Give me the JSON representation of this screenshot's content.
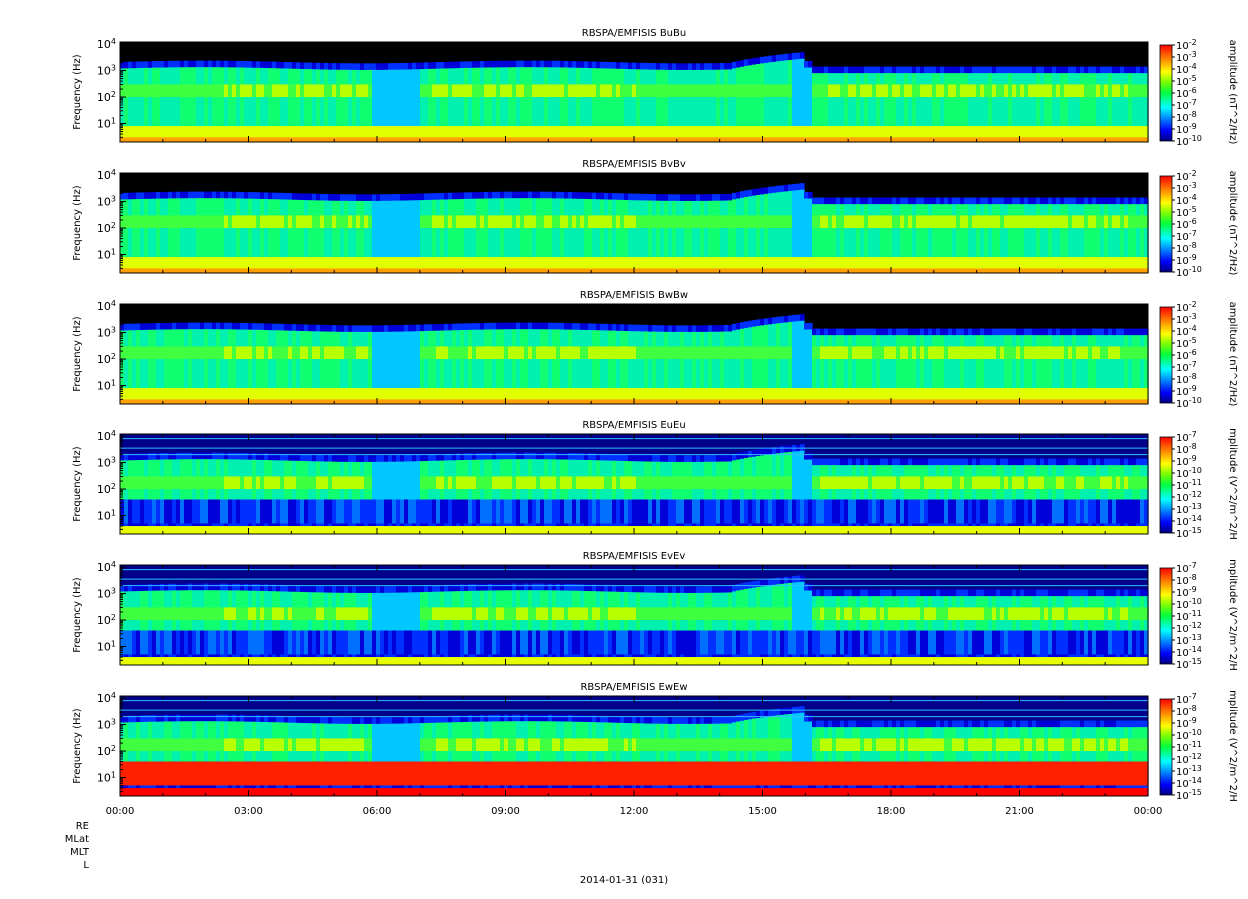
{
  "chart_data": [
    {
      "type": "heatmap",
      "title": "RBSPA/EMFISIS  BuBu",
      "ylabel": "Frequency (Hz)",
      "y_scale": "log",
      "ylim": [
        2,
        12000
      ],
      "y_ticks": [
        "10^1",
        "10^2",
        "10^3",
        "10^4"
      ],
      "xlim": [
        "00:00",
        "24:00"
      ],
      "colorbar": {
        "label": "amplitude (nT^2/Hz)",
        "scale": "log",
        "ticks": [
          "10^-2",
          "10^-3",
          "10^-4",
          "10^-5",
          "10^-6",
          "10^-7",
          "10^-8",
          "10^-9",
          "10^-10"
        ]
      }
    },
    {
      "type": "heatmap",
      "title": "RBSPA/EMFISIS  BvBv",
      "ylabel": "Frequency (Hz)",
      "y_scale": "log",
      "ylim": [
        2,
        12000
      ],
      "y_ticks": [
        "10^1",
        "10^2",
        "10^3",
        "10^4"
      ],
      "xlim": [
        "00:00",
        "24:00"
      ],
      "colorbar": {
        "label": "amplitude (nT^2/Hz)",
        "scale": "log",
        "ticks": [
          "10^-2",
          "10^-3",
          "10^-4",
          "10^-5",
          "10^-6",
          "10^-7",
          "10^-8",
          "10^-9",
          "10^-10"
        ]
      }
    },
    {
      "type": "heatmap",
      "title": "RBSPA/EMFISIS  BwBw",
      "ylabel": "Frequency (Hz)",
      "y_scale": "log",
      "ylim": [
        2,
        12000
      ],
      "y_ticks": [
        "10^1",
        "10^2",
        "10^3",
        "10^4"
      ],
      "xlim": [
        "00:00",
        "24:00"
      ],
      "colorbar": {
        "label": "amplitude (nT^2/Hz)",
        "scale": "log",
        "ticks": [
          "10^-2",
          "10^-3",
          "10^-4",
          "10^-5",
          "10^-6",
          "10^-7",
          "10^-8",
          "10^-9",
          "10^-10"
        ]
      }
    },
    {
      "type": "heatmap",
      "title": "RBSPA/EMFISIS  EuEu",
      "ylabel": "Frequency (Hz)",
      "y_scale": "log",
      "ylim": [
        2,
        12000
      ],
      "y_ticks": [
        "10^1",
        "10^2",
        "10^3",
        "10^4"
      ],
      "xlim": [
        "00:00",
        "24:00"
      ],
      "colorbar": {
        "label": "mplitude (V^2/m^2/H",
        "scale": "log",
        "ticks": [
          "10^-7",
          "10^-8",
          "10^-9",
          "10^-10",
          "10^-11",
          "10^-12",
          "10^-13",
          "10^-14",
          "10^-15"
        ]
      }
    },
    {
      "type": "heatmap",
      "title": "RBSPA/EMFISIS  EvEv",
      "ylabel": "Frequency (Hz)",
      "y_scale": "log",
      "ylim": [
        2,
        12000
      ],
      "y_ticks": [
        "10^1",
        "10^2",
        "10^3",
        "10^4"
      ],
      "xlim": [
        "00:00",
        "24:00"
      ],
      "colorbar": {
        "label": "mplitude (V^2/m^2/H",
        "scale": "log",
        "ticks": [
          "10^-7",
          "10^-8",
          "10^-9",
          "10^-10",
          "10^-11",
          "10^-12",
          "10^-13",
          "10^-14",
          "10^-15"
        ]
      }
    },
    {
      "type": "heatmap",
      "title": "RBSPA/EMFISIS  EwEw",
      "ylabel": "Frequency (Hz)",
      "y_scale": "log",
      "ylim": [
        2,
        12000
      ],
      "y_ticks": [
        "10^1",
        "10^2",
        "10^3",
        "10^4"
      ],
      "xlim": [
        "00:00",
        "24:00"
      ],
      "colorbar": {
        "label": "mplitude (V^2/m^2/H",
        "scale": "log",
        "ticks": [
          "10^-7",
          "10^-8",
          "10^-9",
          "10^-10",
          "10^-11",
          "10^-12",
          "10^-13",
          "10^-14",
          "10^-15"
        ]
      }
    }
  ],
  "x_tick_labels": [
    "00:00",
    "03:00",
    "06:00",
    "09:00",
    "12:00",
    "15:00",
    "18:00",
    "21:00",
    "00:00"
  ],
  "footer": {
    "row_labels": [
      "RE",
      "MLat",
      "MLT",
      "L"
    ],
    "date": "2014-01-31 (031)"
  }
}
